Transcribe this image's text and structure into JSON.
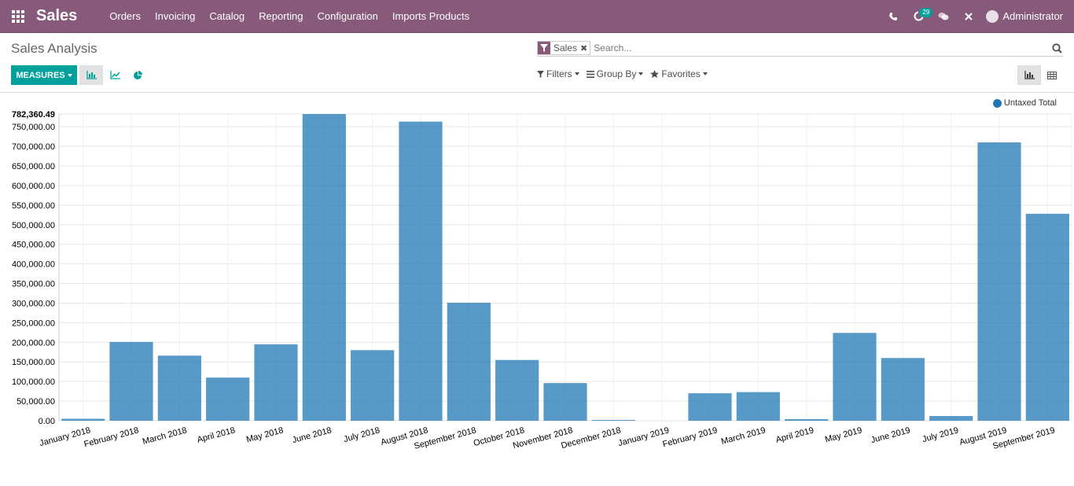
{
  "navbar": {
    "brand": "Sales",
    "menu": [
      "Orders",
      "Invoicing",
      "Catalog",
      "Reporting",
      "Configuration",
      "Imports Products"
    ],
    "activity_count": "29",
    "user": "Administrator"
  },
  "control": {
    "title": "Sales Analysis",
    "facet": "Sales",
    "search_placeholder": "Search...",
    "measures_label": "MEASURES",
    "filters_label": "Filters",
    "groupby_label": "Group By",
    "favorites_label": "Favorites"
  },
  "colors": {
    "brand": "#875A7B",
    "accent": "#00A09D",
    "bar": "#1f77b4"
  },
  "chart_data": {
    "type": "bar",
    "legend": "Untaxed Total",
    "legend_position": "top-right",
    "grid": true,
    "ylim": [
      0,
      782360.49
    ],
    "y_max_label": "782,360.49",
    "y_ticks": [
      "0.00",
      "50,000.00",
      "100,000.00",
      "150,000.00",
      "200,000.00",
      "250,000.00",
      "300,000.00",
      "350,000.00",
      "400,000.00",
      "450,000.00",
      "500,000.00",
      "550,000.00",
      "600,000.00",
      "650,000.00",
      "700,000.00",
      "750,000.00"
    ],
    "categories": [
      "January 2018",
      "February 2018",
      "March 2018",
      "April 2018",
      "May 2018",
      "June 2018",
      "July 2018",
      "August 2018",
      "September 2018",
      "October 2018",
      "November 2018",
      "December 2018",
      "January 2019",
      "February 2019",
      "March 2019",
      "April 2019",
      "May 2019",
      "June 2019",
      "July 2019",
      "August 2019",
      "September 2019"
    ],
    "series": [
      {
        "name": "Untaxed Total",
        "values": [
          5000,
          201000,
          166000,
          110000,
          195000,
          782360.49,
          180000,
          763000,
          301000,
          155000,
          96000,
          1500,
          0,
          70000,
          73000,
          4000,
          224000,
          160000,
          12000,
          710000,
          528000
        ]
      }
    ]
  }
}
